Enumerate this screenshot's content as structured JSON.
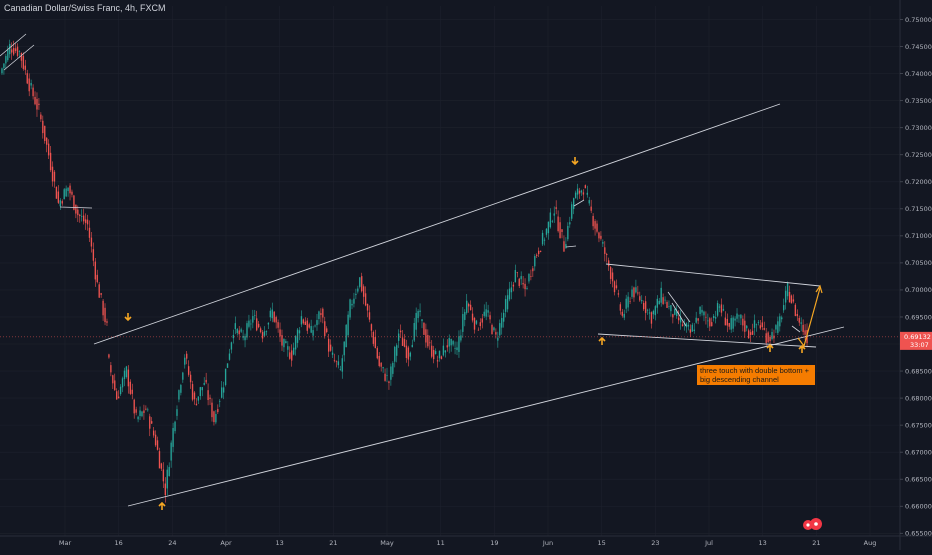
{
  "title": "Canadian Dollar/Swiss Franc, 4h, FXCM",
  "chart_data": {
    "type": "candlestick",
    "title": "Canadian Dollar/Swiss Franc, 4h, FXCM",
    "ylim": [
      0.6545,
      0.7525
    ],
    "y_ticks": [
      "0.75000",
      "0.74500",
      "0.74000",
      "0.73500",
      "0.73000",
      "0.72500",
      "0.72000",
      "0.71500",
      "0.71000",
      "0.70500",
      "0.70000",
      "0.69500",
      "0.69000",
      "0.68500",
      "0.68000",
      "0.67500",
      "0.67000",
      "0.66500",
      "0.66000",
      "0.65500"
    ],
    "x_ticks": [
      "Mar",
      "16",
      "24",
      "Apr",
      "13",
      "21",
      "May",
      "11",
      "19",
      "Jun",
      "15",
      "23",
      "Jul",
      "13",
      "21",
      "Aug"
    ],
    "current_price": "0.69132",
    "countdown": "33:07",
    "up_color": "#26a69a",
    "down_color": "#ef5350",
    "price_path": [
      [
        0.74,
        0.745
      ],
      [
        0.745,
        0.744
      ],
      [
        0.744,
        0.738
      ],
      [
        0.738,
        0.733
      ],
      [
        0.733,
        0.725
      ],
      [
        0.725,
        0.716
      ],
      [
        0.716,
        0.719
      ],
      [
        0.719,
        0.714
      ],
      [
        0.714,
        0.712
      ],
      [
        0.712,
        0.701
      ],
      [
        0.701,
        0.693
      ],
      [
        0.688,
        0.68
      ],
      [
        0.68,
        0.685
      ],
      [
        0.685,
        0.676
      ],
      [
        0.676,
        0.678
      ],
      [
        0.678,
        0.672
      ],
      [
        0.672,
        0.663
      ],
      [
        0.663,
        0.677
      ],
      [
        0.677,
        0.688
      ],
      [
        0.688,
        0.679
      ],
      [
        0.679,
        0.683
      ],
      [
        0.683,
        0.676
      ],
      [
        0.676,
        0.683
      ],
      [
        0.683,
        0.693
      ],
      [
        0.693,
        0.691
      ],
      [
        0.691,
        0.695
      ],
      [
        0.695,
        0.692
      ],
      [
        0.692,
        0.696
      ],
      [
        0.696,
        0.69
      ],
      [
        0.69,
        0.688
      ],
      [
        0.688,
        0.695
      ],
      [
        0.695,
        0.692
      ],
      [
        0.692,
        0.696
      ],
      [
        0.696,
        0.688
      ],
      [
        0.688,
        0.685
      ],
      [
        0.685,
        0.697
      ],
      [
        0.697,
        0.702
      ],
      [
        0.702,
        0.694
      ],
      [
        0.694,
        0.686
      ],
      [
        0.686,
        0.683
      ],
      [
        0.683,
        0.692
      ],
      [
        0.692,
        0.688
      ],
      [
        0.688,
        0.696
      ],
      [
        0.696,
        0.69
      ],
      [
        0.69,
        0.687
      ],
      [
        0.687,
        0.69
      ],
      [
        0.69,
        0.689
      ],
      [
        0.689,
        0.698
      ],
      [
        0.698,
        0.693
      ],
      [
        0.693,
        0.696
      ],
      [
        0.696,
        0.691
      ],
      [
        0.691,
        0.697
      ],
      [
        0.697,
        0.703
      ],
      [
        0.703,
        0.7
      ],
      [
        0.7,
        0.706
      ],
      [
        0.706,
        0.71
      ],
      [
        0.71,
        0.715
      ],
      [
        0.715,
        0.708
      ],
      [
        0.708,
        0.717
      ],
      [
        0.717,
        0.719
      ],
      [
        0.719,
        0.713
      ],
      [
        0.713,
        0.708
      ],
      [
        0.708,
        0.702
      ],
      [
        0.702,
        0.695
      ],
      [
        0.695,
        0.7
      ],
      [
        0.7,
        0.698
      ],
      [
        0.698,
        0.695
      ],
      [
        0.695,
        0.699
      ],
      [
        0.699,
        0.696
      ],
      [
        0.696,
        0.694
      ],
      [
        0.694,
        0.692
      ],
      [
        0.692,
        0.696
      ],
      [
        0.696,
        0.694
      ],
      [
        0.694,
        0.697
      ],
      [
        0.697,
        0.693
      ],
      [
        0.693,
        0.695
      ],
      [
        0.695,
        0.692
      ],
      [
        0.692,
        0.694
      ],
      [
        0.694,
        0.691
      ],
      [
        0.691,
        0.693
      ],
      [
        0.693,
        0.7
      ],
      [
        0.7,
        0.695
      ],
      [
        0.695,
        0.6913
      ]
    ],
    "annotation": "three touch with double bottom + big descending channel"
  }
}
